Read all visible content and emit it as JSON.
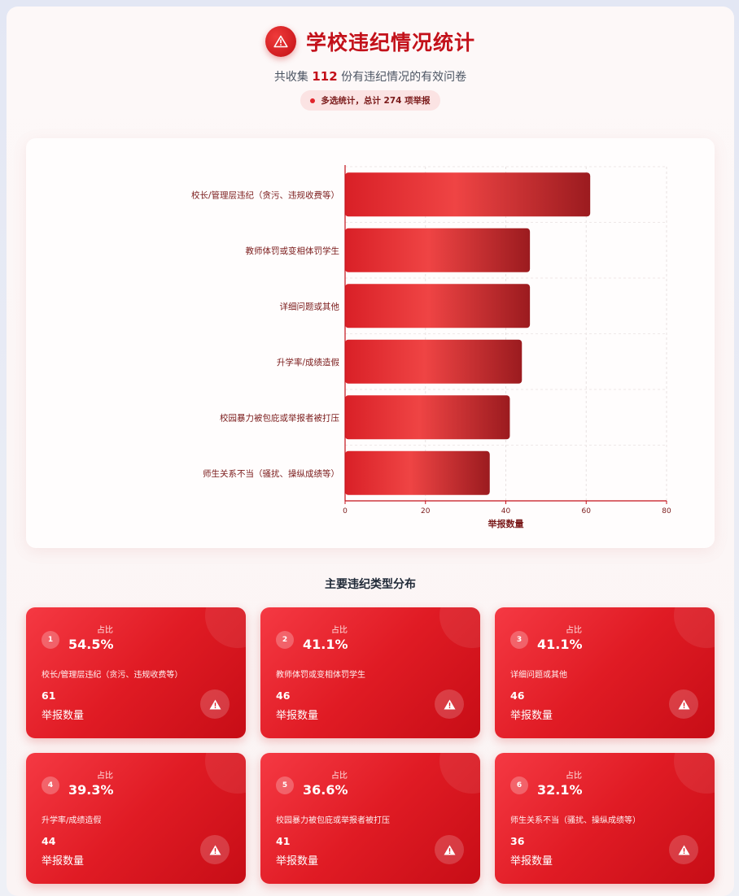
{
  "header": {
    "title": "学校违纪情况统计",
    "subtitle_prefix": "共收集",
    "subtitle_count": "112",
    "subtitle_suffix": "份有违纪情况的有效问卷",
    "badge": "多选统计，总计 274 项举报"
  },
  "chart_data": {
    "type": "bar",
    "orientation": "horizontal",
    "categories": [
      "校长/管理层违纪（贪污、违规收费等）",
      "教师体罚或变相体罚学生",
      "详细问题或其他",
      "升学率/成绩造假",
      "校园暴力被包庇或举报者被打压",
      "师生关系不当（骚扰、操纵成绩等）"
    ],
    "values": [
      61,
      46,
      46,
      44,
      41,
      36
    ],
    "xlabel": "举报数量",
    "xlim": [
      0,
      80
    ],
    "xticks": [
      "0",
      "20",
      "40",
      "60",
      "80"
    ],
    "grid": true,
    "colors": {
      "bar_light": "#ef4444",
      "bar_dark": "#9b1b1f",
      "axis": "#c3111a"
    }
  },
  "section": {
    "title": "主要违纪类型分布"
  },
  "cards": [
    {
      "rank": "1",
      "ratio_label": "占比",
      "ratio": "54.5%",
      "name": "校长/管理层违纪（贪污、违规收费等）",
      "count": "61",
      "count_label": "举报数量",
      "icon": "warning-icon"
    },
    {
      "rank": "2",
      "ratio_label": "占比",
      "ratio": "41.1%",
      "name": "教师体罚或变相体罚学生",
      "count": "46",
      "count_label": "举报数量",
      "icon": "warning-icon"
    },
    {
      "rank": "3",
      "ratio_label": "占比",
      "ratio": "41.1%",
      "name": "详细问题或其他",
      "count": "46",
      "count_label": "举报数量",
      "icon": "warning-icon"
    },
    {
      "rank": "4",
      "ratio_label": "占比",
      "ratio": "39.3%",
      "name": "升学率/成绩造假",
      "count": "44",
      "count_label": "举报数量",
      "icon": "warning-icon"
    },
    {
      "rank": "5",
      "ratio_label": "占比",
      "ratio": "36.6%",
      "name": "校园暴力被包庇或举报者被打压",
      "count": "41",
      "count_label": "举报数量",
      "icon": "warning-icon"
    },
    {
      "rank": "6",
      "ratio_label": "占比",
      "ratio": "32.1%",
      "name": "师生关系不当（骚扰、操纵成绩等）",
      "count": "36",
      "count_label": "举报数量",
      "icon": "warning-icon"
    }
  ],
  "theme": {
    "accent": "#c3111a",
    "card_gradient_start": "#f53943",
    "card_gradient_end": "#c70d16"
  }
}
